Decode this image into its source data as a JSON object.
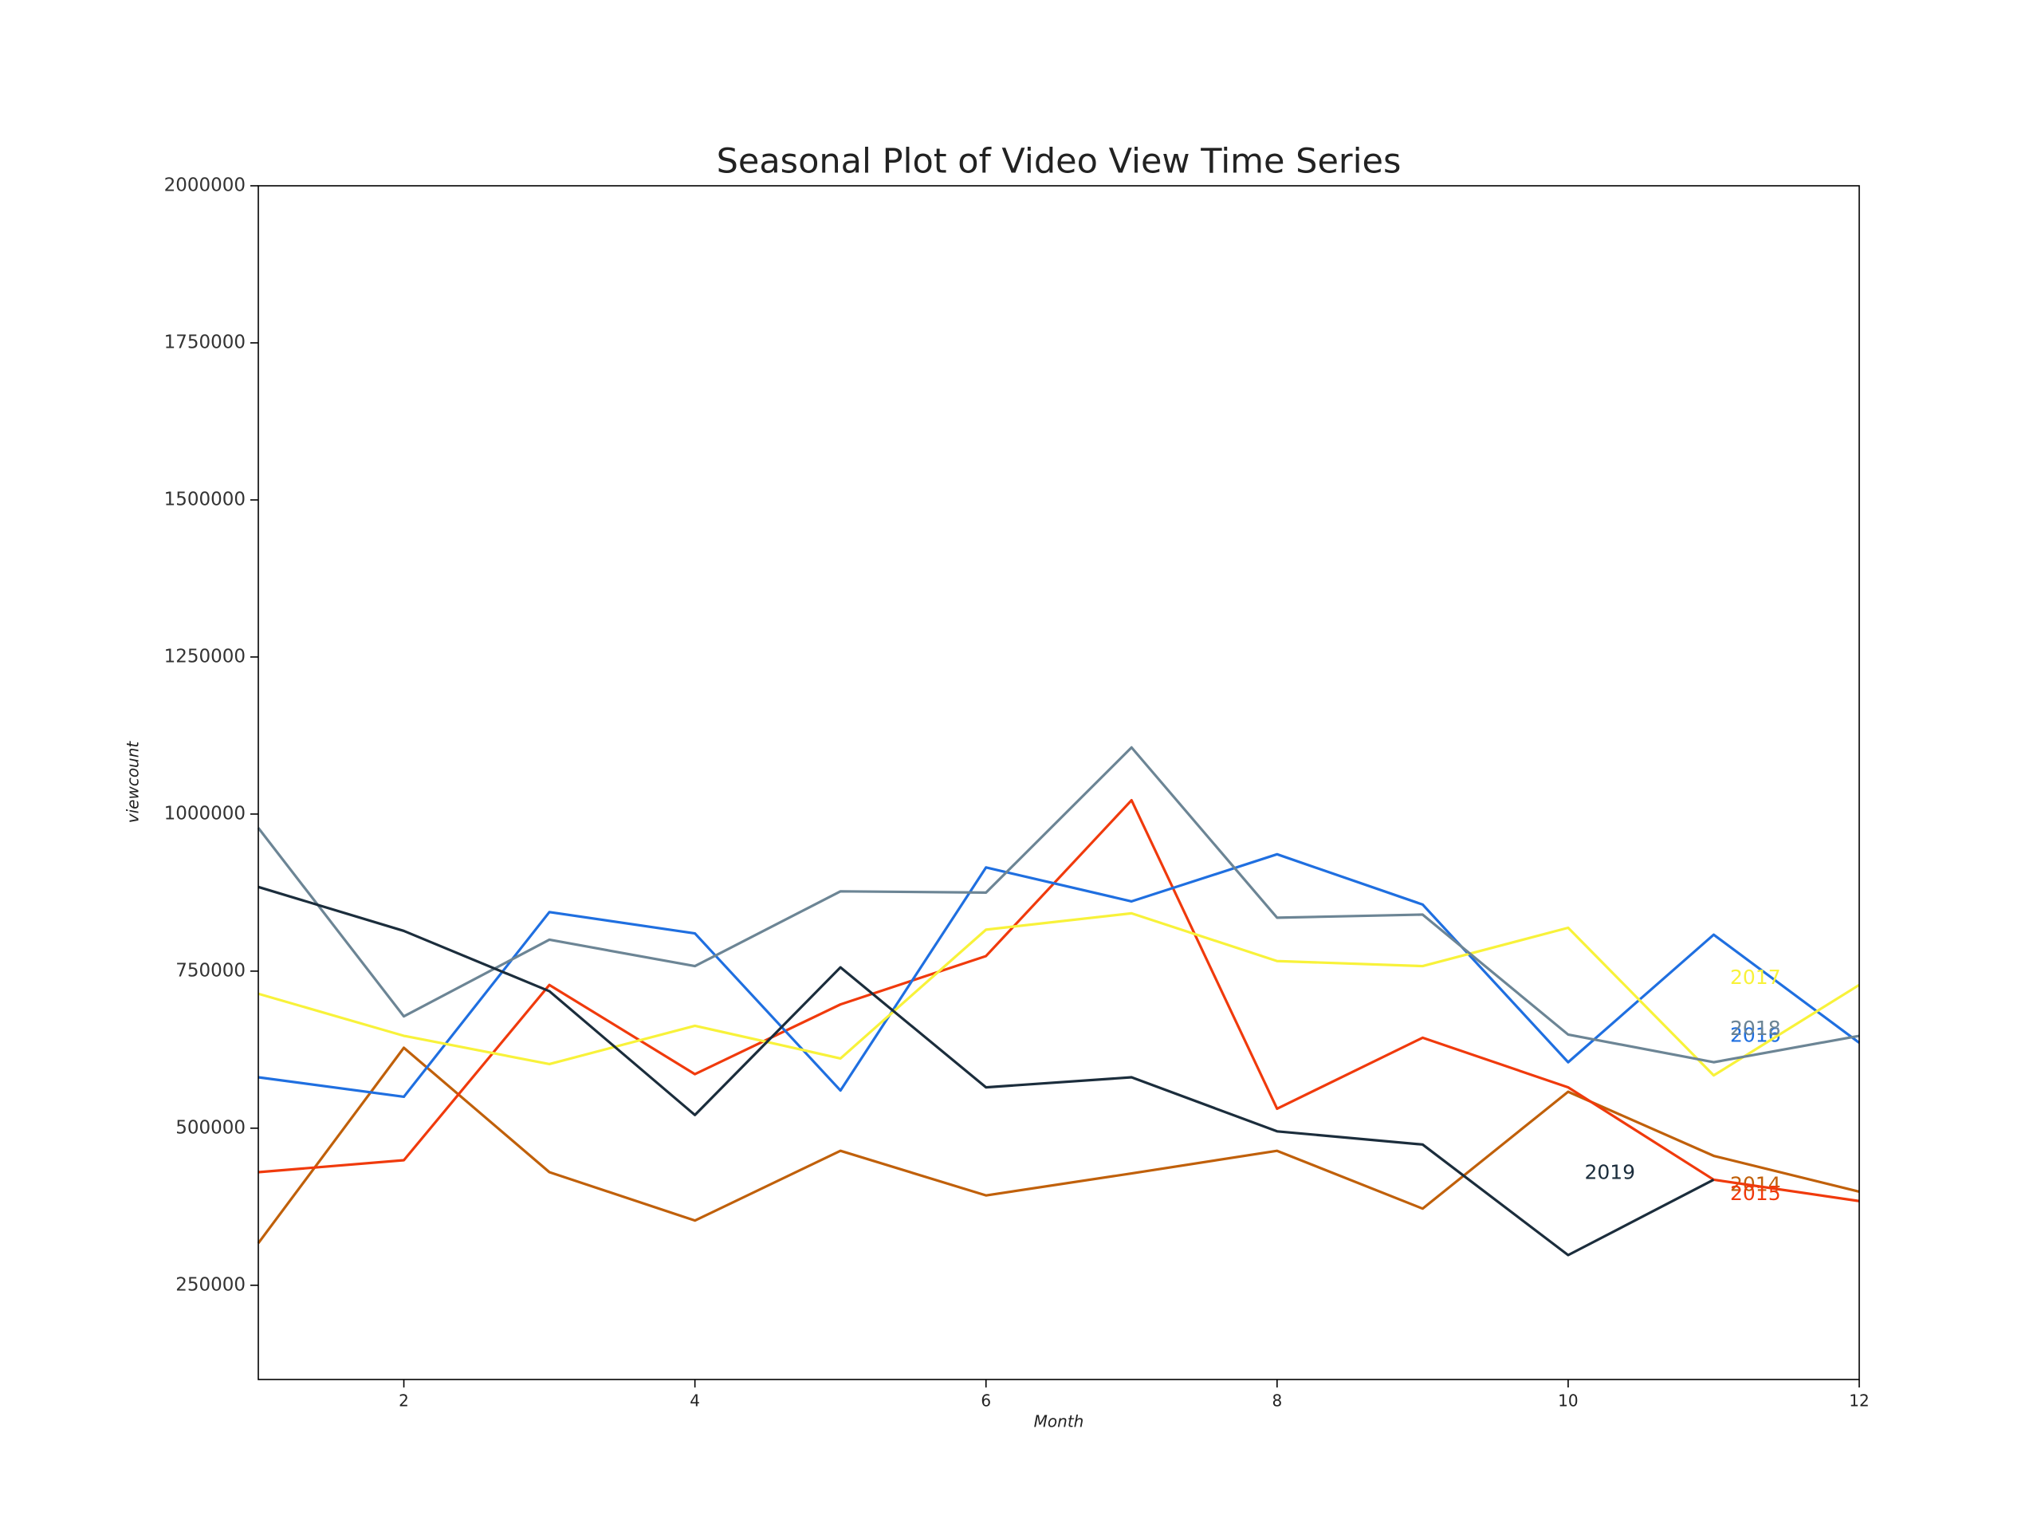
{
  "chart_data": {
    "type": "line",
    "title": "Seasonal Plot of Video View Time Series",
    "x_label": "Month",
    "y_label": "viewcount",
    "x": [
      1,
      2,
      3,
      4,
      5,
      6,
      7,
      8,
      9,
      10,
      11,
      12
    ],
    "xlim": [
      1,
      12
    ],
    "xticks": [
      2,
      4,
      6,
      8,
      10,
      12
    ],
    "ylim": [
      100000,
      2000000
    ],
    "yticks": [
      250000,
      500000,
      750000,
      1000000,
      1250000,
      1500000,
      1750000,
      2000000
    ],
    "series": [
      {
        "name": "2014",
        "color": "#c0600a",
        "values": [
          317000,
          628000,
          430000,
          353000,
          464000,
          393000,
          428000,
          464000,
          372000,
          558000,
          456000,
          399000
        ]
      },
      {
        "name": "2015",
        "color": "#f03a0c",
        "values": [
          430000,
          449000,
          728000,
          586000,
          697000,
          774000,
          1022000,
          531000,
          644000,
          565000,
          418000,
          384000
        ]
      },
      {
        "name": "2016",
        "color": "#1f6fe0",
        "values": [
          581000,
          550000,
          844000,
          810000,
          560000,
          915000,
          861000,
          936000,
          856000,
          605000,
          808000,
          636000
        ]
      },
      {
        "name": "2017",
        "color": "#f8f23a",
        "values": [
          714000,
          647000,
          602000,
          663000,
          611000,
          816000,
          842000,
          766000,
          758000,
          819000,
          584000,
          728000
        ]
      },
      {
        "name": "2018",
        "color": "#6c8595",
        "values": [
          978000,
          678000,
          800000,
          758000,
          877000,
          875000,
          1106000,
          835000,
          840000,
          649000,
          605000,
          647000
        ]
      },
      {
        "name": "2019",
        "color": "#1b2d3c",
        "values": [
          884000,
          814000,
          718000,
          521000,
          756000,
          565000,
          581000,
          495000,
          474000,
          298000,
          418000,
          null
        ]
      }
    ]
  }
}
